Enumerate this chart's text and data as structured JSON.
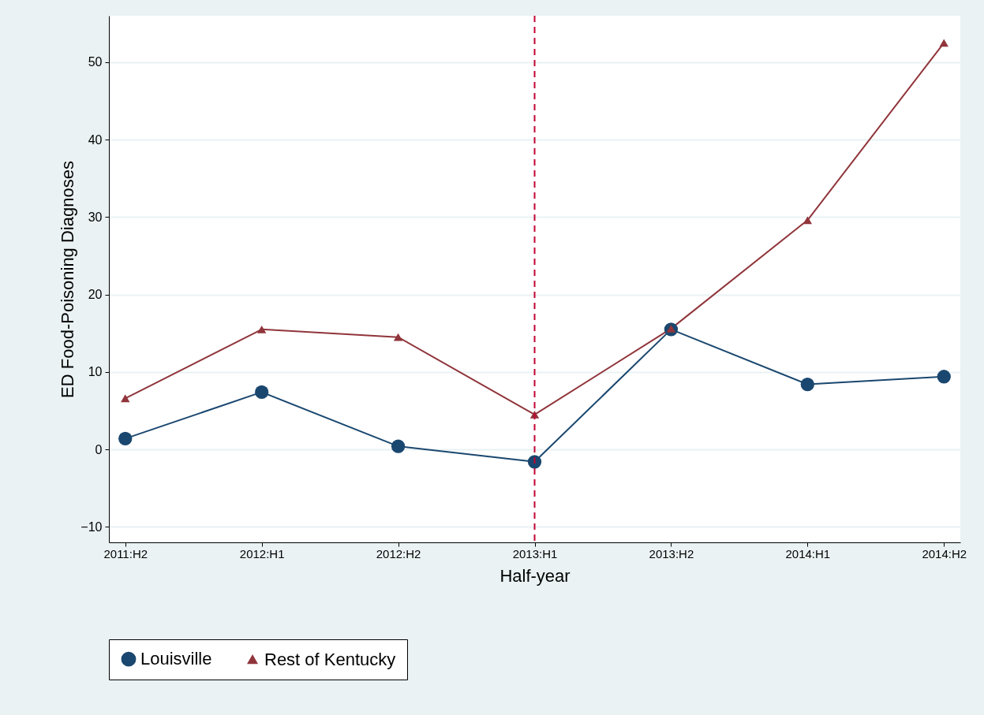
{
  "chart_data": {
    "type": "line",
    "xlabel": "Half-year",
    "ylabel": "ED Food-Poisoning Diagnoses",
    "categories": [
      "2011:H2",
      "2012:H1",
      "2012:H2",
      "2013:H1",
      "2013:H2",
      "2014:H1",
      "2014:H2"
    ],
    "series": [
      {
        "name": "Louisville",
        "color": "#1a476f",
        "marker": "circle",
        "values": [
          1.4,
          7.4,
          0.4,
          -1.6,
          15.5,
          8.4,
          9.4
        ]
      },
      {
        "name": "Rest of Kentucky",
        "color": "#90353b",
        "marker": "triangle",
        "values": [
          6.6,
          15.5,
          14.5,
          4.5,
          15.6,
          29.6,
          52.5
        ]
      }
    ],
    "ylim": [
      -12,
      56
    ],
    "yticks": [
      -10,
      0,
      10,
      20,
      30,
      40,
      50
    ],
    "grid": "y",
    "legend": "bottom",
    "line_style": "solid",
    "ref_lines": [
      {
        "axis": "x",
        "value": "2013:H1",
        "color": "#c10534",
        "line_style": "dashed"
      }
    ]
  }
}
